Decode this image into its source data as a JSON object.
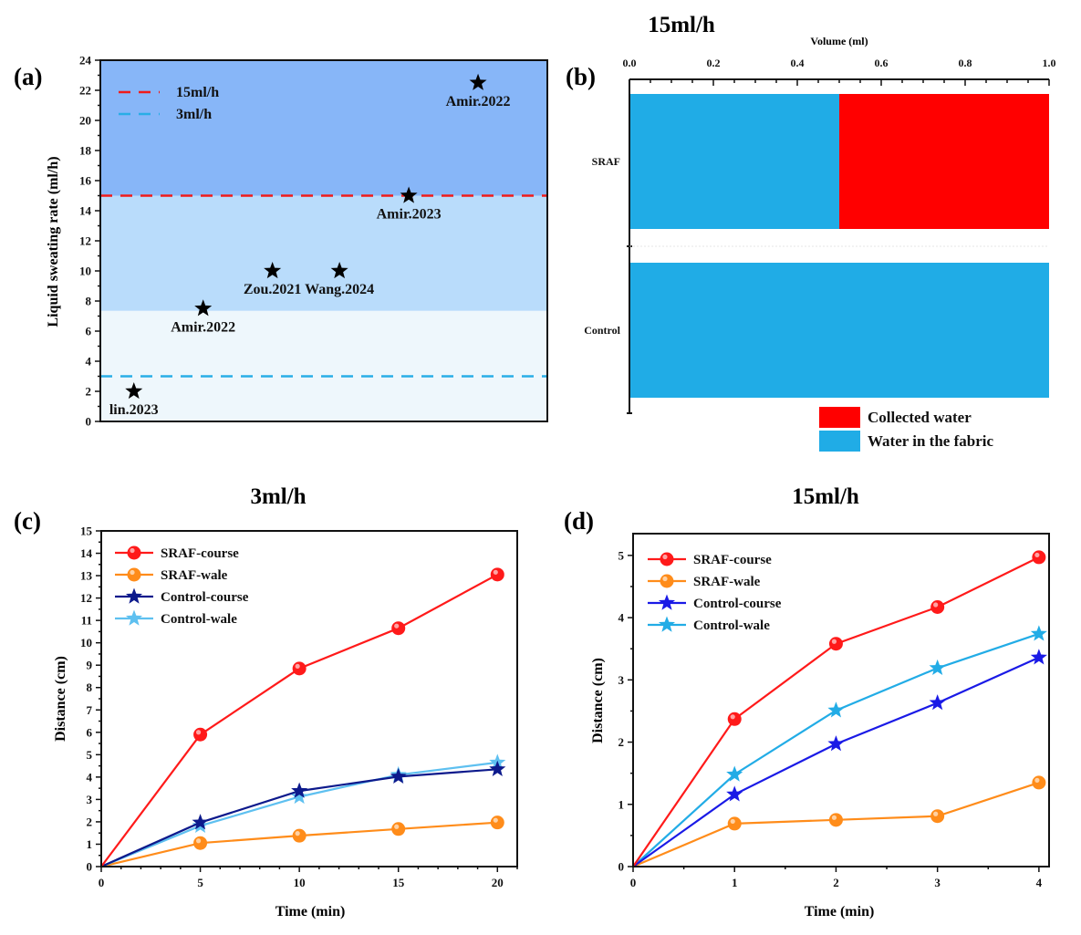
{
  "chart_data": [
    {
      "id": "a",
      "panel_label": "(a)",
      "type": "scatter",
      "title": "",
      "xlabel": "",
      "ylabel": "Liquid sweating rate (ml/h)",
      "ylim": [
        0,
        24
      ],
      "yticks": [
        0,
        2,
        4,
        6,
        8,
        10,
        12,
        14,
        16,
        18,
        20,
        22,
        24
      ],
      "xticks_shown": false,
      "x_range": [
        0,
        1
      ],
      "bands": [
        {
          "from": 0,
          "to": 7.35,
          "color": "#eef7fc"
        },
        {
          "from": 7.35,
          "to": 15,
          "color": "#b9dcfb"
        },
        {
          "from": 15,
          "to": 24,
          "color": "#87b6f8"
        }
      ],
      "reference_lines": [
        {
          "name": "15ml/h",
          "y": 15,
          "color": "#f01b1b",
          "style": "dashed"
        },
        {
          "name": "3ml/h",
          "y": 3,
          "color": "#29aee6",
          "style": "dashed"
        }
      ],
      "legend": {
        "position": "top-left",
        "entries": [
          "15ml/h",
          "3ml/h"
        ]
      },
      "points": [
        {
          "label": "lin.2023",
          "x": 0.075,
          "y": 2
        },
        {
          "label": "Amir.2022",
          "x": 0.23,
          "y": 7.5
        },
        {
          "label": "Zou.2021",
          "x": 0.385,
          "y": 10
        },
        {
          "label": "Wang.2024",
          "x": 0.535,
          "y": 10
        },
        {
          "label": "Amir.2023",
          "x": 0.69,
          "y": 15
        },
        {
          "label": "Amir.2022",
          "x": 0.845,
          "y": 22.5
        }
      ],
      "marker": "star",
      "marker_color": "#000000"
    },
    {
      "id": "b",
      "panel_label": "(b)",
      "type": "bar",
      "orientation": "horizontal",
      "stacked": true,
      "title": "15ml/h",
      "xlabel": "Volume (ml)",
      "ylabel": "",
      "xlim": [
        0,
        1.0
      ],
      "xticks": [
        "0.0",
        "0.2",
        "0.4",
        "0.6",
        "0.8",
        "1.0"
      ],
      "categories": [
        "SRAF",
        "Control"
      ],
      "series": [
        {
          "name": "Water in the fabric",
          "color": "#20ace6",
          "values": [
            0.5,
            1.0
          ]
        },
        {
          "name": "Collected water",
          "color": "#ff0000",
          "values": [
            0.5,
            0.0
          ]
        }
      ],
      "legend": {
        "position": "bottom-right",
        "entries": [
          "Collected water",
          "Water in the fabric"
        ]
      }
    },
    {
      "id": "c",
      "panel_label": "(c)",
      "type": "line",
      "title": "3ml/h",
      "xlabel": "Time (min)",
      "ylabel": "Distance (cm)",
      "xlim": [
        0,
        21
      ],
      "ylim": [
        0,
        15
      ],
      "xticks": [
        0,
        5,
        10,
        15,
        20
      ],
      "yticks": [
        0,
        1,
        2,
        3,
        4,
        5,
        6,
        7,
        8,
        9,
        10,
        11,
        12,
        13,
        14,
        15
      ],
      "x": [
        0,
        5,
        10,
        15,
        20
      ],
      "legend": {
        "position": "top-left"
      },
      "series": [
        {
          "name": "SRAF-course",
          "color": "#ff1a1a",
          "marker": "circle",
          "values": [
            0,
            5.9,
            8.85,
            10.65,
            13.05
          ]
        },
        {
          "name": "SRAF-wale",
          "color": "#ff8c1a",
          "marker": "circle",
          "values": [
            0,
            1.05,
            1.38,
            1.68,
            1.97
          ]
        },
        {
          "name": "Control-course",
          "color": "#0d1a8c",
          "marker": "star",
          "values": [
            0,
            1.97,
            3.38,
            4.02,
            4.35
          ]
        },
        {
          "name": "Control-wale",
          "color": "#5ec0f0",
          "marker": "star",
          "values": [
            0,
            1.82,
            3.12,
            4.1,
            4.65
          ]
        }
      ]
    },
    {
      "id": "d",
      "panel_label": "(d)",
      "type": "line",
      "title": "15ml/h",
      "xlabel": "Time (min)",
      "ylabel": "Distance (cm)",
      "xlim": [
        0,
        4.1
      ],
      "ylim": [
        0,
        5.35
      ],
      "xticks": [
        0,
        1,
        2,
        3,
        4
      ],
      "yticks": [
        0,
        1,
        2,
        3,
        4,
        5
      ],
      "x": [
        0,
        1,
        2,
        3,
        4
      ],
      "legend": {
        "position": "top-left"
      },
      "series": [
        {
          "name": "SRAF-course",
          "color": "#ff1a1a",
          "marker": "circle",
          "values": [
            0,
            2.37,
            3.58,
            4.17,
            4.97
          ]
        },
        {
          "name": "SRAF-wale",
          "color": "#ff8c1a",
          "marker": "circle",
          "values": [
            0,
            0.69,
            0.75,
            0.81,
            1.35
          ]
        },
        {
          "name": "Control-course",
          "color": "#1a1ae6",
          "marker": "star",
          "values": [
            0,
            1.16,
            1.97,
            2.63,
            3.36
          ]
        },
        {
          "name": "Control-wale",
          "color": "#22ace6",
          "marker": "star",
          "values": [
            0,
            1.48,
            2.51,
            3.19,
            3.74
          ]
        }
      ]
    }
  ]
}
